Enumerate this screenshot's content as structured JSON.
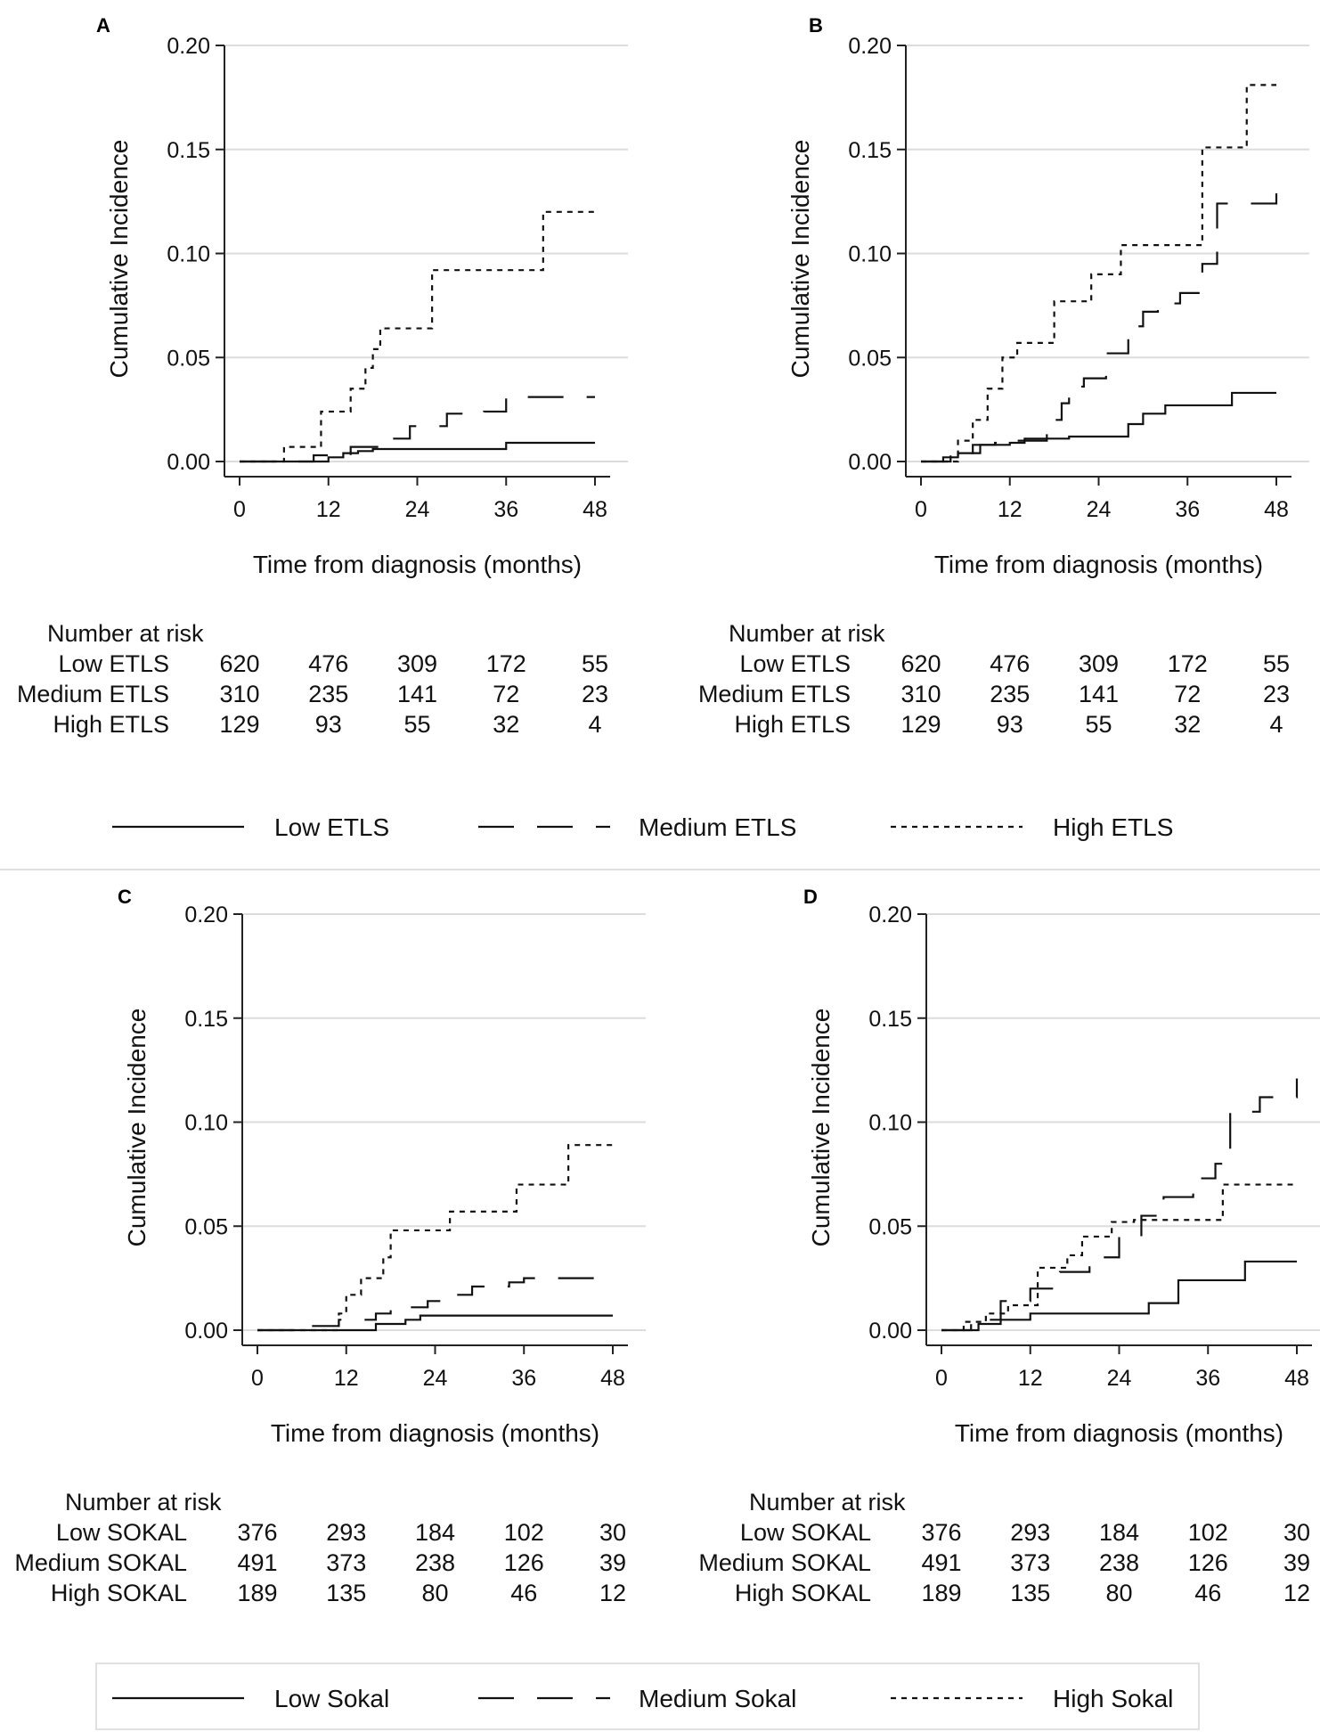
{
  "chart_data": [
    {
      "panel": "A",
      "type": "line",
      "step": true,
      "xlabel": "Time from diagnosis (months)",
      "ylabel": "Cumulative Incidence",
      "xlim": [
        0,
        48
      ],
      "ylim": [
        0,
        0.2
      ],
      "xticks": [
        0,
        12,
        24,
        36,
        48
      ],
      "yticks": [
        0.0,
        0.05,
        0.1,
        0.15,
        0.2
      ],
      "ytick_labels": [
        "0.00",
        "0.05",
        "0.10",
        "0.15",
        "0.20"
      ],
      "grid": true,
      "series": [
        {
          "name": "Low ETLS",
          "style": "solid",
          "x": [
            0,
            12,
            14,
            16,
            18,
            36,
            48
          ],
          "y": [
            0,
            0.002,
            0.004,
            0.005,
            0.006,
            0.009,
            0.009
          ]
        },
        {
          "name": "Medium ETLS",
          "style": "dashed",
          "x": [
            0,
            10,
            15,
            20,
            23,
            28,
            33,
            36,
            48
          ],
          "y": [
            0,
            0.003,
            0.007,
            0.011,
            0.017,
            0.023,
            0.024,
            0.031,
            0.031
          ]
        },
        {
          "name": "High ETLS",
          "style": "dotted",
          "x": [
            0,
            6,
            11,
            15,
            17,
            18,
            19,
            26,
            41,
            48
          ],
          "y": [
            0,
            0.007,
            0.024,
            0.035,
            0.045,
            0.054,
            0.064,
            0.092,
            0.12,
            0.12
          ]
        }
      ],
      "risk_table": {
        "title": "Number at risk",
        "rows": [
          {
            "label": "Low ETLS",
            "values": [
              620,
              476,
              309,
              172,
              55
            ]
          },
          {
            "label": "Medium ETLS",
            "values": [
              310,
              235,
              141,
              72,
              23
            ]
          },
          {
            "label": "High ETLS",
            "values": [
              129,
              93,
              55,
              32,
              4
            ]
          }
        ]
      }
    },
    {
      "panel": "B",
      "type": "line",
      "step": true,
      "xlabel": "Time from diagnosis (months)",
      "ylabel": "Cumulative Incidence",
      "xlim": [
        0,
        48
      ],
      "ylim": [
        0,
        0.2
      ],
      "xticks": [
        0,
        12,
        24,
        36,
        48
      ],
      "yticks": [
        0.0,
        0.05,
        0.1,
        0.15,
        0.2
      ],
      "ytick_labels": [
        "0.00",
        "0.05",
        "0.10",
        "0.15",
        "0.20"
      ],
      "grid": true,
      "series": [
        {
          "name": "Low ETLS",
          "style": "solid",
          "x": [
            0,
            3,
            5,
            8,
            12,
            14,
            20,
            28,
            30,
            33,
            42,
            48
          ],
          "y": [
            0,
            0.002,
            0.004,
            0.008,
            0.009,
            0.011,
            0.012,
            0.018,
            0.023,
            0.027,
            0.033,
            0.033
          ]
        },
        {
          "name": "Medium ETLS",
          "style": "dashed",
          "x": [
            0,
            4,
            7,
            10,
            12,
            17,
            19,
            20,
            22,
            25,
            28,
            30,
            32,
            35,
            38,
            40,
            44,
            48
          ],
          "y": [
            0,
            0.004,
            0.008,
            0.009,
            0.01,
            0.02,
            0.028,
            0.036,
            0.04,
            0.052,
            0.065,
            0.072,
            0.076,
            0.081,
            0.095,
            0.124,
            0.124,
            0.138
          ]
        },
        {
          "name": "High ETLS",
          "style": "dotted",
          "x": [
            0,
            5,
            7,
            9,
            11,
            13,
            18,
            23,
            27,
            38,
            44,
            48
          ],
          "y": [
            0,
            0.01,
            0.02,
            0.035,
            0.05,
            0.057,
            0.077,
            0.09,
            0.104,
            0.151,
            0.181,
            0.181
          ]
        }
      ],
      "risk_table": {
        "title": "Number at risk",
        "rows": [
          {
            "label": "Low ETLS",
            "values": [
              620,
              476,
              309,
              172,
              55
            ]
          },
          {
            "label": "Medium ETLS",
            "values": [
              310,
              235,
              141,
              72,
              23
            ]
          },
          {
            "label": "High ETLS",
            "values": [
              129,
              93,
              55,
              32,
              4
            ]
          }
        ]
      }
    },
    {
      "panel": "C",
      "type": "line",
      "step": true,
      "xlabel": "Time from diagnosis (months)",
      "ylabel": "Cumulative Incidence",
      "xlim": [
        0,
        48
      ],
      "ylim": [
        0,
        0.2
      ],
      "xticks": [
        0,
        12,
        24,
        36,
        48
      ],
      "yticks": [
        0.0,
        0.05,
        0.1,
        0.15,
        0.2
      ],
      "ytick_labels": [
        "0.00",
        "0.05",
        "0.10",
        "0.15",
        "0.20"
      ],
      "grid": true,
      "series": [
        {
          "name": "Low Sokal",
          "style": "solid",
          "x": [
            0,
            16,
            20,
            22,
            48
          ],
          "y": [
            0,
            0.003,
            0.005,
            0.007,
            0.007
          ]
        },
        {
          "name": "Medium Sokal",
          "style": "dashed",
          "x": [
            0,
            6,
            11,
            16,
            18,
            23,
            26,
            29,
            34,
            36,
            48
          ],
          "y": [
            0,
            0.002,
            0.005,
            0.008,
            0.011,
            0.014,
            0.017,
            0.021,
            0.023,
            0.025,
            0.025
          ]
        },
        {
          "name": "High Sokal",
          "style": "dotted",
          "x": [
            0,
            11,
            12,
            14,
            17,
            18,
            26,
            35,
            42,
            48
          ],
          "y": [
            0,
            0.008,
            0.017,
            0.025,
            0.035,
            0.048,
            0.057,
            0.07,
            0.089,
            0.089
          ]
        }
      ],
      "risk_table": {
        "title": "Number at risk",
        "rows": [
          {
            "label": "Low SOKAL",
            "values": [
              376,
              293,
              184,
              102,
              30
            ]
          },
          {
            "label": "Medium SOKAL",
            "values": [
              491,
              373,
              238,
              126,
              39
            ]
          },
          {
            "label": "High SOKAL",
            "values": [
              189,
              135,
              80,
              46,
              12
            ]
          }
        ]
      }
    },
    {
      "panel": "D",
      "type": "line",
      "step": true,
      "xlabel": "Time from diagnosis (months)",
      "ylabel": "Cumulative Incidence",
      "xlim": [
        0,
        48
      ],
      "ylim": [
        0,
        0.2
      ],
      "xticks": [
        0,
        12,
        24,
        36,
        48
      ],
      "yticks": [
        0.0,
        0.05,
        0.1,
        0.15,
        0.2
      ],
      "ytick_labels": [
        "0.00",
        "0.05",
        "0.10",
        "0.15",
        "0.20"
      ],
      "grid": true,
      "series": [
        {
          "name": "Low Sokal",
          "style": "solid",
          "x": [
            0,
            5,
            8,
            12,
            28,
            32,
            41,
            48
          ],
          "y": [
            0,
            0.003,
            0.005,
            0.008,
            0.013,
            0.024,
            0.033,
            0.033
          ]
        },
        {
          "name": "Medium Sokal",
          "style": "dashed",
          "x": [
            0,
            4,
            8,
            12,
            16,
            20,
            24,
            27,
            30,
            34,
            37,
            39,
            43,
            48
          ],
          "y": [
            0,
            0.005,
            0.014,
            0.02,
            0.028,
            0.035,
            0.045,
            0.055,
            0.064,
            0.073,
            0.08,
            0.105,
            0.112,
            0.121
          ]
        },
        {
          "name": "High Sokal",
          "style": "dotted",
          "x": [
            0,
            3,
            6,
            9,
            13,
            17,
            19,
            23,
            26,
            38,
            48
          ],
          "y": [
            0,
            0.004,
            0.008,
            0.012,
            0.03,
            0.036,
            0.045,
            0.052,
            0.053,
            0.07,
            0.07
          ]
        }
      ],
      "risk_table": {
        "title": "Number at risk",
        "rows": [
          {
            "label": "Low SOKAL",
            "values": [
              376,
              293,
              184,
              102,
              30
            ]
          },
          {
            "label": "Medium SOKAL",
            "values": [
              491,
              373,
              238,
              126,
              39
            ]
          },
          {
            "label": "High SOKAL",
            "values": [
              189,
              135,
              80,
              46,
              12
            ]
          }
        ]
      }
    }
  ],
  "legends": [
    {
      "items": [
        "Low ETLS",
        "Medium ETLS",
        "High ETLS"
      ]
    },
    {
      "items": [
        "Low Sokal",
        "Medium Sokal",
        "High Sokal"
      ]
    }
  ]
}
